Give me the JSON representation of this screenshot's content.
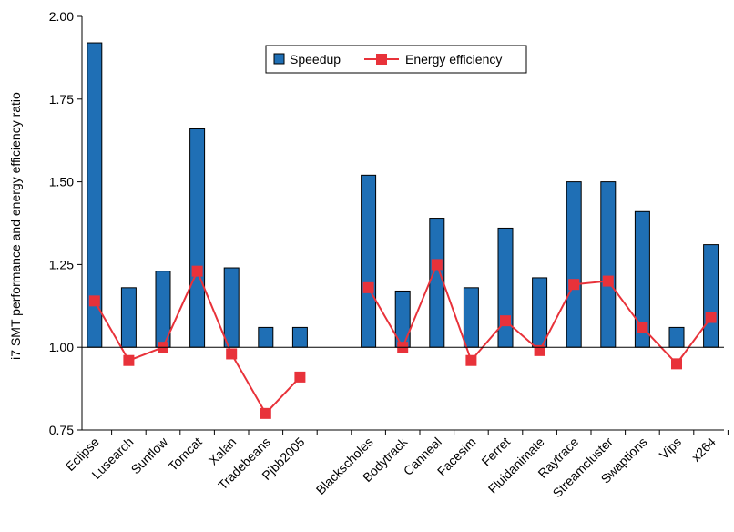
{
  "chart_data": {
    "type": "bar",
    "ylabel": "i7 SMT performance and energy efficiency ratio",
    "ylim": [
      0.75,
      2.0
    ],
    "yticks": [
      "0.75",
      "1.00",
      "1.25",
      "1.50",
      "1.75",
      "2.00"
    ],
    "grid": false,
    "legend_position": "top-center",
    "colors": {
      "speedup": "#1f6fb5",
      "energy": "#e8323a"
    },
    "categories": [
      "Eclipse",
      "Lusearch",
      "Sunflow",
      "Tomcat",
      "Xalan",
      "Tradebeans",
      "Pjbb2005",
      "",
      "Blackscholes",
      "Bodytrack",
      "Canneal",
      "Facesim",
      "Ferret",
      "Fluidanimate",
      "Raytrace",
      "Streamcluster",
      "Swaptions",
      "Vips",
      "x264"
    ],
    "series": [
      {
        "name": "Speedup",
        "kind": "bar",
        "values": [
          1.92,
          1.18,
          1.23,
          1.66,
          1.24,
          1.06,
          1.06,
          null,
          1.52,
          1.17,
          1.39,
          1.18,
          1.36,
          1.21,
          1.5,
          1.5,
          1.41,
          1.06,
          1.31
        ]
      },
      {
        "name": "Energy efficiency",
        "kind": "line",
        "values": [
          1.14,
          0.96,
          1.0,
          1.23,
          0.98,
          0.8,
          0.91,
          null,
          1.18,
          1.0,
          1.25,
          0.96,
          1.08,
          0.99,
          1.19,
          1.2,
          1.06,
          0.95,
          1.09
        ]
      }
    ]
  }
}
